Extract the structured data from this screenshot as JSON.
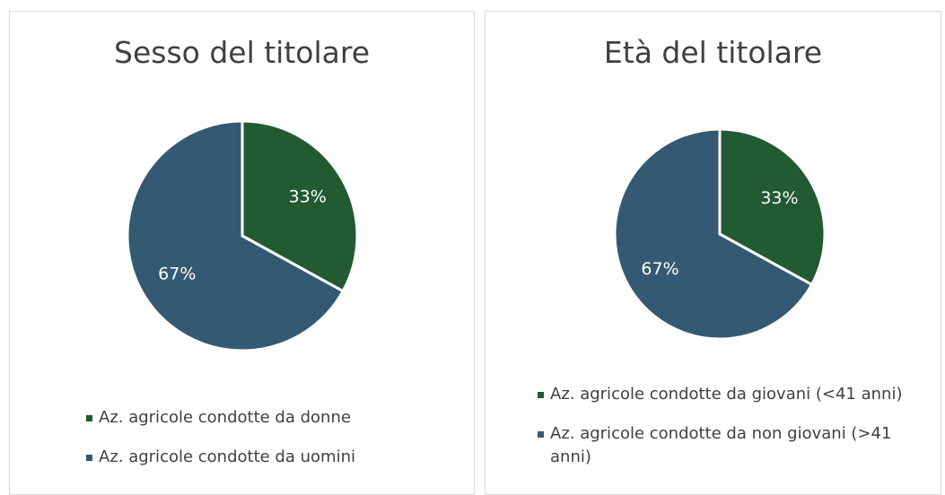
{
  "chart_data": [
    {
      "type": "pie",
      "title": "Sesso del titolare",
      "categories": [
        "Az. agricole condotte da donne",
        "Az. agricole condotte da uomini"
      ],
      "values": [
        33,
        67
      ],
      "value_labels": [
        "33%",
        "67%"
      ],
      "colors": [
        "#225a32",
        "#335a72"
      ]
    },
    {
      "type": "pie",
      "title": "Età del titolare",
      "categories": [
        "Az. agricole condotte da giovani (<41 anni)",
        "Az. agricole condotte da non giovani (>41 anni)"
      ],
      "values": [
        33,
        67
      ],
      "value_labels": [
        "33%",
        "67%"
      ],
      "colors": [
        "#225a32",
        "#335a72"
      ]
    }
  ]
}
